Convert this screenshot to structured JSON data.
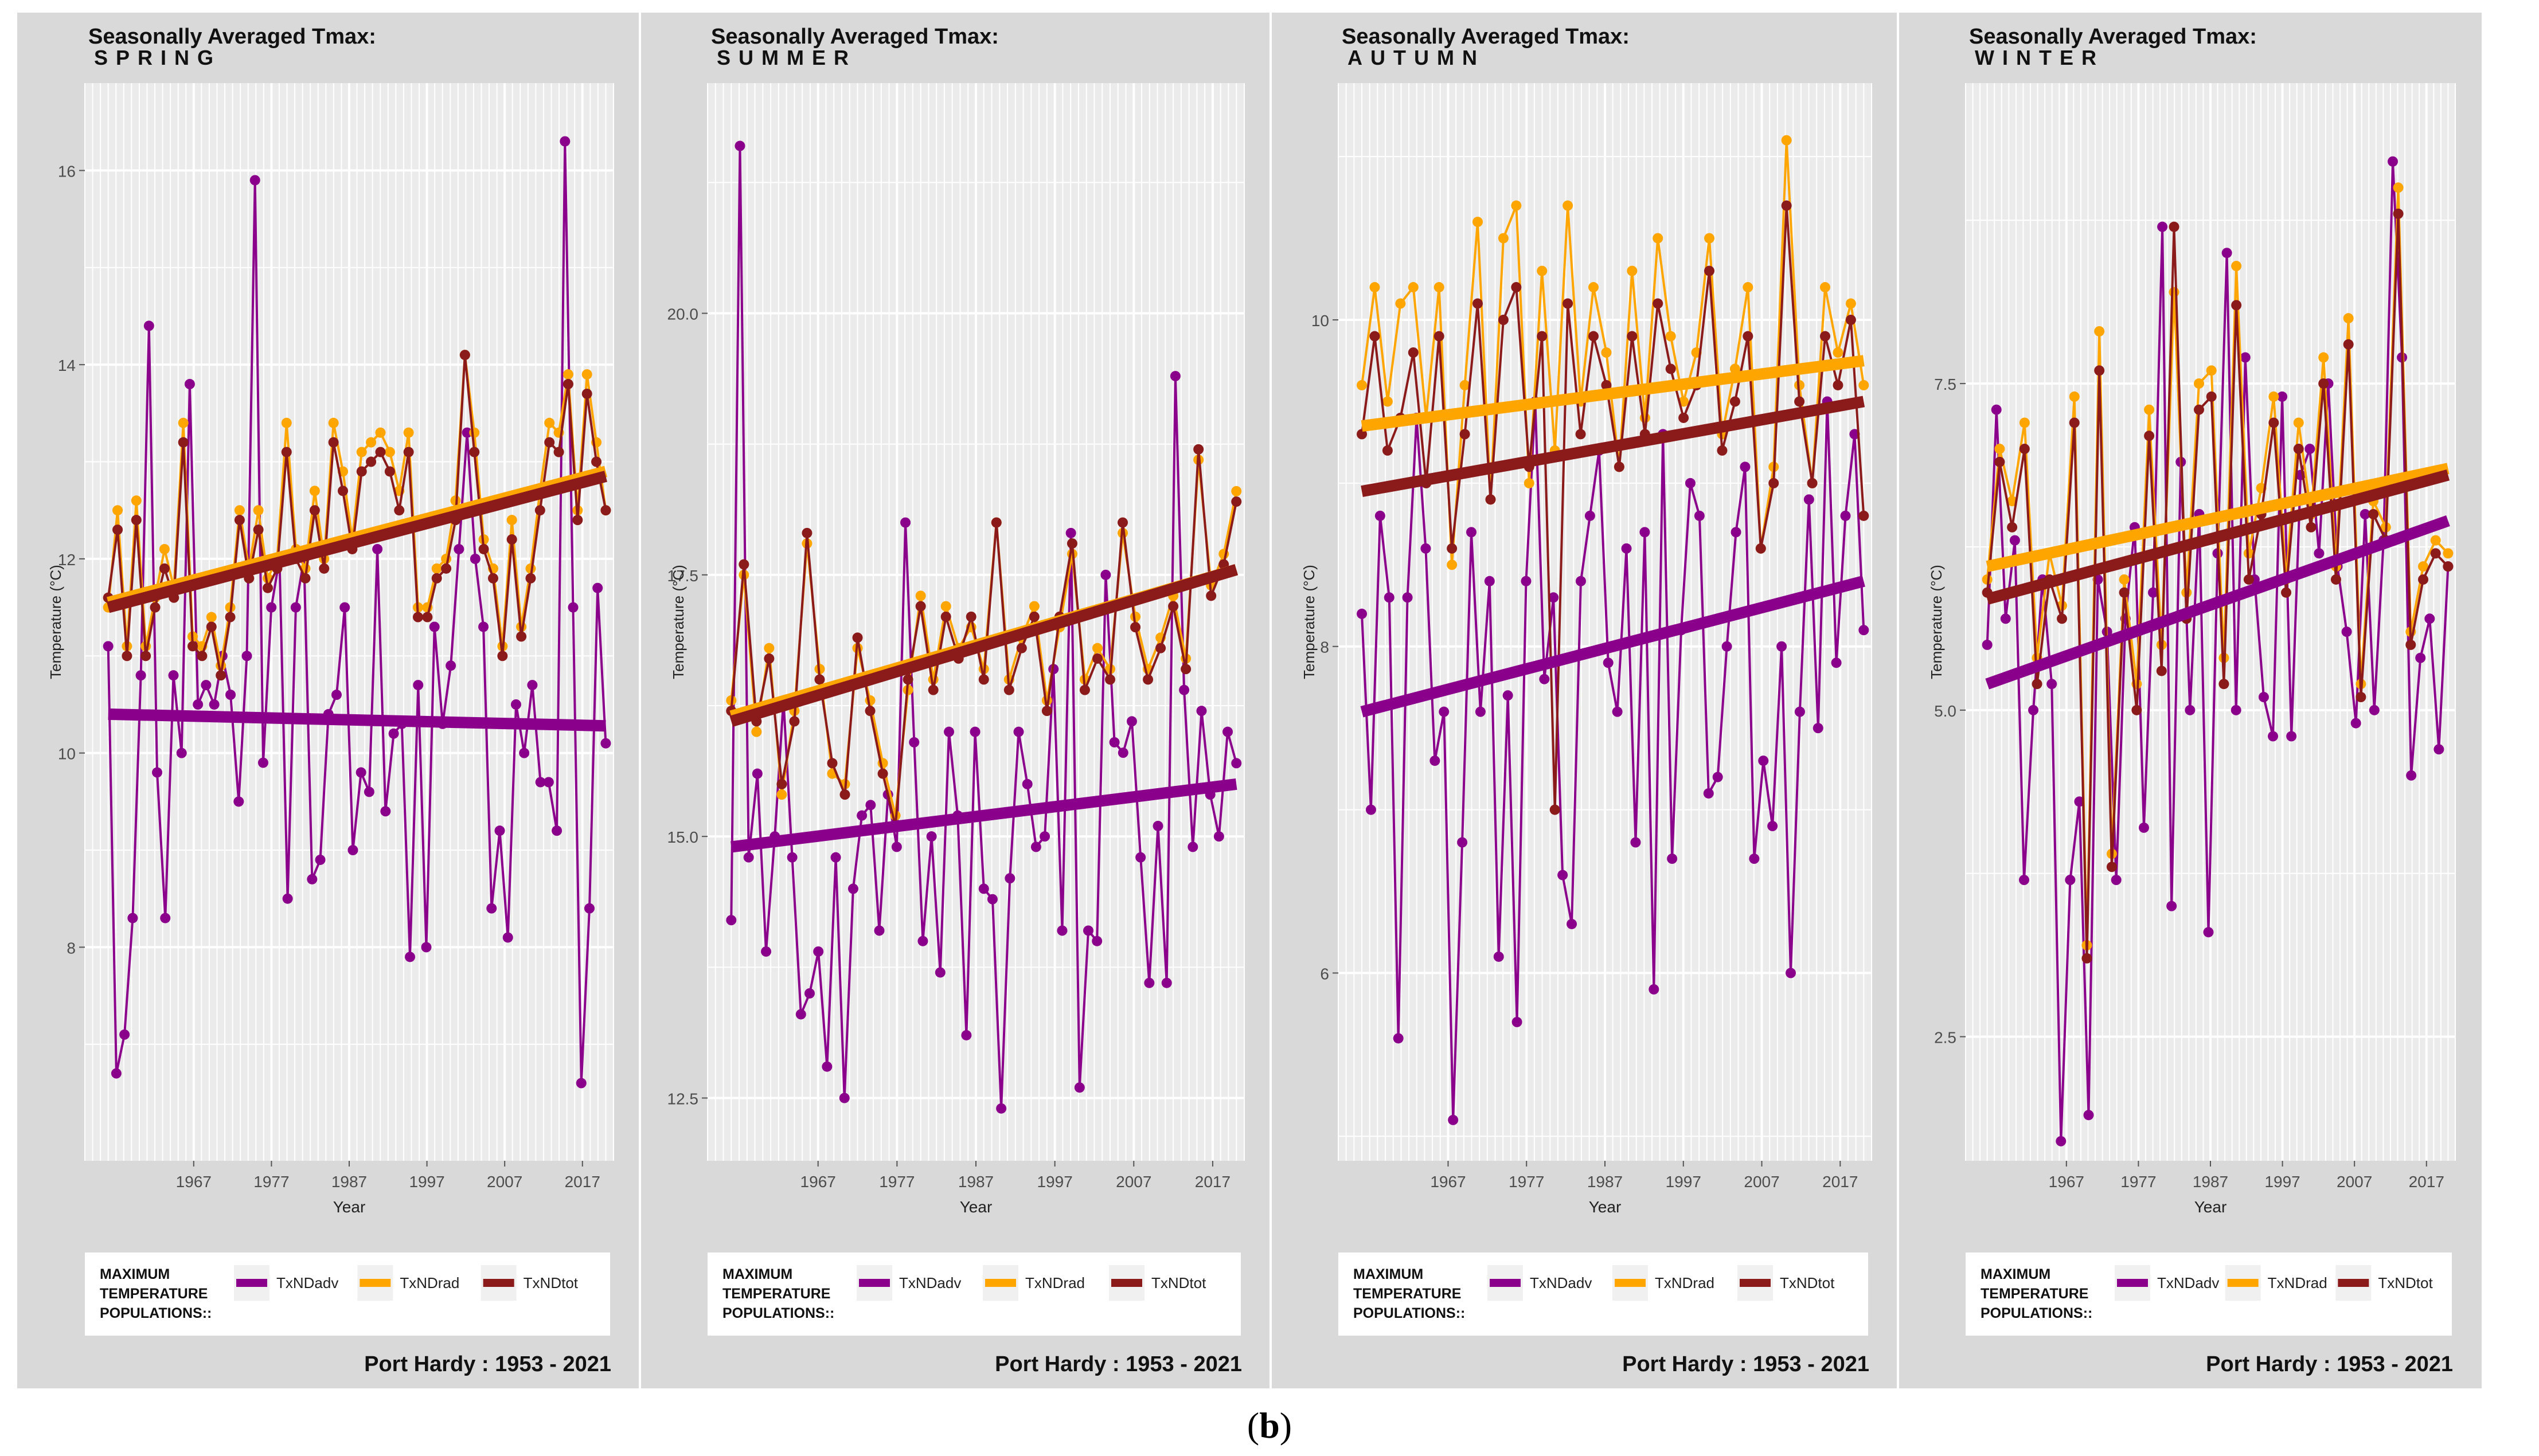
{
  "figure": {
    "caption_open": "(",
    "caption_label": "b",
    "caption_close": ")"
  },
  "colors": {
    "adv": "#8B008B",
    "rad": "#FFA500",
    "tot": "#8B1A1A",
    "panel_bg": "#d9d9d9",
    "plot_bg": "#ebebeb",
    "grid": "#ffffff"
  },
  "chart_data": [
    {
      "type": "line",
      "title": "Seasonally Averaged Tmax:",
      "subtitle": "SPRING",
      "xlabel": "Year",
      "ylabel": "Temperature (°C)",
      "xlim": [
        1953,
        2021
      ],
      "ylim": [
        5.8,
        16.9
      ],
      "x_ticks": [
        1967,
        1977,
        1987,
        1997,
        2007,
        2017
      ],
      "y_ticks": [
        8,
        10,
        12,
        14,
        16
      ],
      "y_tick_labels": [
        "8",
        "10",
        "12",
        "14",
        "16"
      ],
      "legend_title": [
        "MAXIMUM",
        "TEMPERATURE",
        "POPULATIONS::"
      ],
      "footer": "Port Hardy : 1953 - 2021",
      "grid": true,
      "series": [
        {
          "name": "TxNDadv",
          "color": "#8B008B",
          "trend": [
            10.4,
            10.28
          ],
          "values": [
            11.1,
            6.7,
            7.1,
            8.3,
            10.8,
            14.4,
            9.8,
            8.3,
            10.8,
            10.0,
            13.8,
            10.5,
            10.7,
            10.5,
            11.0,
            10.6,
            9.5,
            11.0,
            15.9,
            9.9,
            11.5,
            12.0,
            8.5,
            11.5,
            12.0,
            8.7,
            8.9,
            10.4,
            10.6,
            11.5,
            9.0,
            9.8,
            9.6,
            12.1,
            9.4,
            10.2,
            10.3,
            7.9,
            10.7,
            8.0,
            11.3,
            10.3,
            10.9,
            12.1,
            13.3,
            12.0,
            11.3,
            8.4,
            9.2,
            8.1,
            10.5,
            10.0,
            10.7,
            9.7,
            9.7,
            9.2,
            16.3,
            11.5,
            6.6,
            8.4,
            11.7,
            10.1
          ]
        },
        {
          "name": "TxNDrad",
          "color": "#FFA500",
          "trend": [
            11.55,
            12.9
          ],
          "values": [
            11.5,
            12.5,
            11.1,
            12.6,
            11.1,
            11.6,
            12.1,
            11.7,
            13.4,
            11.2,
            11.1,
            11.4,
            10.9,
            11.5,
            12.5,
            11.9,
            12.5,
            11.8,
            12.0,
            13.4,
            12.1,
            11.9,
            12.7,
            12.0,
            13.4,
            12.9,
            12.2,
            13.1,
            13.2,
            13.3,
            13.1,
            12.7,
            13.3,
            11.5,
            11.5,
            11.9,
            12.0,
            12.6,
            14.1,
            13.3,
            12.2,
            11.9,
            11.1,
            12.4,
            11.3,
            11.9,
            12.7,
            13.4,
            13.3,
            13.9,
            12.5,
            13.9,
            13.2,
            12.5
          ]
        },
        {
          "name": "TxNDtot",
          "color": "#8B1A1A",
          "trend": [
            11.5,
            12.85
          ],
          "values": [
            11.6,
            12.3,
            11.0,
            12.4,
            11.0,
            11.5,
            11.9,
            11.6,
            13.2,
            11.1,
            11.0,
            11.3,
            10.8,
            11.4,
            12.4,
            11.8,
            12.3,
            11.7,
            11.9,
            13.1,
            12.0,
            11.8,
            12.5,
            11.9,
            13.2,
            12.7,
            12.1,
            12.9,
            13.0,
            13.1,
            12.9,
            12.5,
            13.1,
            11.4,
            11.4,
            11.8,
            11.9,
            12.4,
            14.1,
            13.1,
            12.1,
            11.8,
            11.0,
            12.2,
            11.2,
            11.8,
            12.5,
            13.2,
            13.1,
            13.8,
            12.4,
            13.7,
            13.0,
            12.5
          ]
        }
      ]
    },
    {
      "type": "line",
      "title": "Seasonally Averaged Tmax:",
      "subtitle": "SUMMER",
      "xlabel": "Year",
      "ylabel": "Temperature (°C)",
      "xlim": [
        1953,
        2021
      ],
      "ylim": [
        11.9,
        22.2
      ],
      "x_ticks": [
        1967,
        1977,
        1987,
        1997,
        2007,
        2017
      ],
      "y_ticks": [
        12.5,
        15.0,
        17.5,
        20.0
      ],
      "y_tick_labels": [
        "12.5",
        "15.0",
        "17.5",
        "20.0"
      ],
      "legend_title": [
        "MAXIMUM",
        "TEMPERATURE",
        "POPULATIONS::"
      ],
      "footer": "Port Hardy : 1953 - 2021",
      "grid": true,
      "series": [
        {
          "name": "TxNDadv",
          "color": "#8B008B",
          "trend": [
            14.9,
            15.5
          ],
          "values": [
            14.2,
            21.6,
            14.8,
            15.6,
            13.9,
            15.0,
            16.3,
            14.8,
            13.3,
            13.5,
            13.9,
            12.8,
            14.8,
            12.5,
            14.5,
            15.2,
            15.3,
            14.1,
            15.4,
            14.9,
            18.0,
            15.9,
            14.0,
            15.0,
            13.7,
            16.0,
            15.2,
            13.1,
            16.0,
            14.5,
            14.4,
            12.4,
            14.6,
            16.0,
            15.5,
            14.9,
            15.0,
            16.6,
            14.1,
            17.9,
            12.6,
            14.1,
            14.0,
            17.5,
            15.9,
            15.8,
            16.1,
            14.8,
            13.6,
            15.1,
            13.6,
            19.4,
            16.4,
            14.9,
            16.2,
            15.4,
            15.0,
            16.0,
            15.7
          ]
        },
        {
          "name": "TxNDrad",
          "color": "#FFA500",
          "trend": [
            16.15,
            17.55
          ],
          "values": [
            16.3,
            17.5,
            16.0,
            16.8,
            15.4,
            16.2,
            17.8,
            16.6,
            15.6,
            15.5,
            16.8,
            16.3,
            15.7,
            15.2,
            16.4,
            17.3,
            16.5,
            17.2,
            16.8,
            17.0,
            16.6,
            18.0,
            16.5,
            16.9,
            17.2,
            16.3,
            17.0,
            17.7,
            16.5,
            16.8,
            16.6,
            17.9,
            17.1,
            16.6,
            16.9,
            17.3,
            16.7,
            18.6,
            17.4,
            17.7,
            18.3
          ]
        },
        {
          "name": "TxNDtot",
          "color": "#8B1A1A",
          "trend": [
            16.1,
            17.55
          ],
          "values": [
            16.2,
            17.6,
            16.1,
            16.7,
            15.5,
            16.1,
            17.9,
            16.5,
            15.7,
            15.4,
            16.9,
            16.2,
            15.6,
            15.1,
            16.5,
            17.2,
            16.4,
            17.1,
            16.7,
            17.1,
            16.5,
            18.0,
            16.4,
            16.8,
            17.1,
            16.2,
            17.1,
            17.8,
            16.4,
            16.7,
            16.5,
            18.0,
            17.0,
            16.5,
            16.8,
            17.2,
            16.6,
            18.7,
            17.3,
            17.6,
            18.2
          ]
        }
      ]
    },
    {
      "type": "line",
      "title": "Seasonally Averaged Tmax:",
      "subtitle": "AUTUMN",
      "xlabel": "Year",
      "ylabel": "Temperature (°C)",
      "xlim": [
        1953,
        2021
      ],
      "ylim": [
        4.85,
        11.45
      ],
      "x_ticks": [
        1967,
        1977,
        1987,
        1997,
        2007,
        2017
      ],
      "y_ticks": [
        6,
        8,
        10
      ],
      "y_tick_labels": [
        "6",
        "8",
        "10"
      ],
      "legend_title": [
        "MAXIMUM",
        "TEMPERATURE",
        "POPULATIONS::"
      ],
      "footer": "Port Hardy : 1953 - 2021",
      "grid": true,
      "series": [
        {
          "name": "TxNDadv",
          "color": "#8B008B",
          "trend": [
            7.6,
            8.4
          ],
          "values": [
            8.2,
            7.0,
            8.8,
            8.3,
            5.6,
            8.3,
            9.4,
            8.6,
            7.3,
            7.6,
            5.1,
            6.8,
            8.7,
            7.6,
            8.4,
            6.1,
            7.7,
            5.7,
            8.4,
            9.5,
            7.8,
            8.3,
            6.6,
            6.3,
            8.4,
            8.8,
            9.2,
            7.9,
            7.6,
            8.6,
            6.8,
            8.7,
            5.9,
            9.3,
            6.7,
            8.1,
            9.0,
            8.8,
            7.1,
            7.2,
            8.0,
            8.7,
            9.1,
            6.7,
            7.3,
            6.9,
            8.0,
            6.0,
            7.6,
            8.9,
            7.5,
            9.5,
            7.9,
            8.8,
            9.3,
            8.1
          ]
        },
        {
          "name": "TxNDrad",
          "color": "#FFA500",
          "trend": [
            9.35,
            9.75
          ],
          "values": [
            9.6,
            10.2,
            9.5,
            10.1,
            10.2,
            9.4,
            10.2,
            8.5,
            9.6,
            10.6,
            8.9,
            10.5,
            10.7,
            9.0,
            10.3,
            9.2,
            10.7,
            9.5,
            10.2,
            9.8,
            9.1,
            10.3,
            9.4,
            10.5,
            9.9,
            9.5,
            9.8,
            10.5,
            9.3,
            9.7,
            10.2,
            8.6,
            9.1,
            11.1,
            9.6,
            9.0,
            10.2,
            9.8,
            10.1,
            9.6
          ]
        },
        {
          "name": "TxNDtot",
          "color": "#8B1A1A",
          "trend": [
            8.95,
            9.5
          ],
          "values": [
            9.3,
            9.9,
            9.2,
            9.4,
            9.8,
            9.0,
            9.9,
            8.6,
            9.3,
            10.1,
            8.9,
            10.0,
            10.2,
            9.1,
            9.9,
            7.0,
            10.1,
            9.3,
            9.9,
            9.6,
            9.1,
            9.9,
            9.3,
            10.1,
            9.7,
            9.4,
            9.6,
            10.3,
            9.2,
            9.5,
            9.9,
            8.6,
            9.0,
            10.7,
            9.5,
            9.0,
            9.9,
            9.6,
            10.0,
            8.8
          ]
        }
      ]
    },
    {
      "type": "line",
      "title": "Seasonally Averaged Tmax:",
      "subtitle": "WINTER",
      "xlabel": "Year",
      "ylabel": "Temperature (°C)",
      "xlim": [
        1953,
        2021
      ],
      "ylim": [
        1.55,
        9.8
      ],
      "x_ticks": [
        1967,
        1977,
        1987,
        1997,
        2007,
        2017
      ],
      "y_ticks": [
        2.5,
        5.0,
        7.5
      ],
      "y_tick_labels": [
        "2.5",
        "5.0",
        "7.5"
      ],
      "legend_title": [
        "MAXIMUM",
        "TEMPERATURE",
        "POPULATIONS::"
      ],
      "footer": "Port Hardy : 1953 - 2021",
      "grid": true,
      "series": [
        {
          "name": "TxNDadv",
          "color": "#8B008B",
          "trend": [
            5.2,
            6.45
          ],
          "values": [
            5.5,
            7.3,
            5.7,
            6.3,
            3.7,
            5.0,
            6.0,
            5.2,
            1.7,
            3.7,
            4.3,
            1.9,
            6.0,
            5.6,
            3.7,
            5.7,
            6.4,
            4.1,
            5.9,
            8.7,
            3.5,
            6.9,
            5.0,
            6.5,
            3.3,
            6.2,
            8.5,
            5.0,
            7.7,
            6.0,
            5.1,
            4.8,
            7.4,
            4.8,
            6.8,
            7.0,
            6.2,
            7.5,
            6.1,
            5.6,
            4.9,
            6.5,
            5.0,
            6.3,
            9.2,
            7.7,
            4.5,
            5.4,
            5.7,
            4.7,
            6.1
          ]
        },
        {
          "name": "TxNDrad",
          "color": "#FFA500",
          "trend": [
            6.1,
            6.85
          ],
          "values": [
            6.0,
            7.0,
            6.6,
            7.2,
            5.4,
            6.2,
            5.8,
            7.4,
            3.2,
            7.9,
            3.9,
            6.0,
            5.2,
            7.3,
            5.5,
            8.2,
            5.9,
            7.5,
            7.6,
            5.4,
            8.4,
            6.2,
            6.7,
            7.4,
            6.0,
            7.2,
            6.5,
            7.7,
            6.1,
            8.0,
            5.2,
            6.6,
            6.4,
            9.0,
            5.6,
            6.1,
            6.3,
            6.2
          ]
        },
        {
          "name": "TxNDtot",
          "color": "#8B1A1A",
          "trend": [
            5.85,
            6.8
          ],
          "values": [
            5.9,
            6.9,
            6.4,
            7.0,
            5.2,
            6.0,
            5.7,
            7.2,
            3.1,
            7.6,
            3.8,
            5.9,
            5.0,
            7.1,
            5.3,
            8.7,
            5.7,
            7.3,
            7.4,
            5.2,
            8.1,
            6.0,
            6.5,
            7.2,
            5.9,
            7.0,
            6.4,
            7.5,
            6.0,
            7.8,
            5.1,
            6.5,
            6.3,
            8.8,
            5.5,
            6.0,
            6.2,
            6.1
          ]
        }
      ]
    }
  ]
}
